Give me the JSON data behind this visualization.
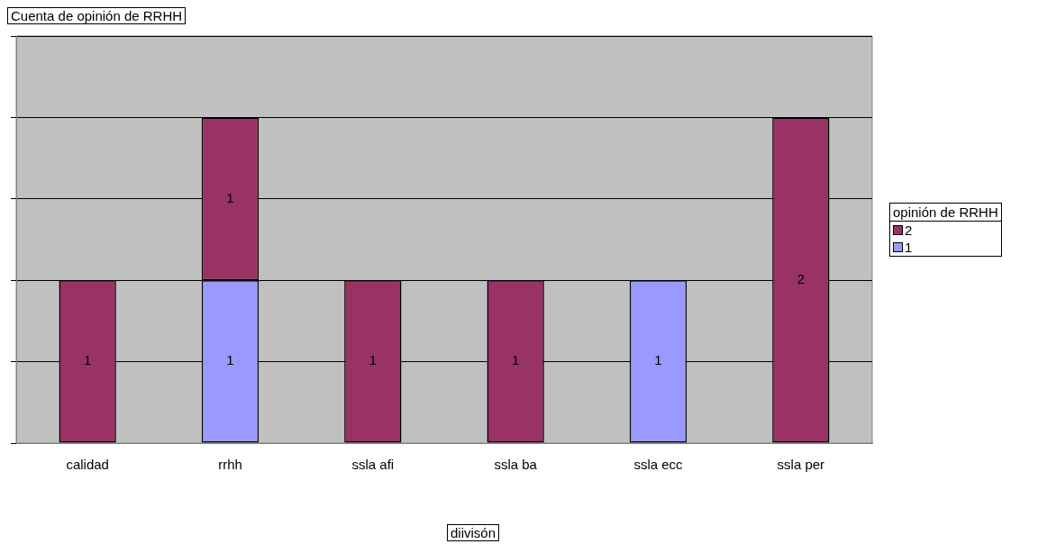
{
  "chart_data": {
    "type": "bar",
    "title": "Cuenta de opinión de RRHH",
    "xlabel": "diivisón",
    "legend_title": "opinión de RRHH",
    "categories": [
      "calidad",
      "rrhh",
      "ssla afi",
      "ssla ba",
      "ssla ecc",
      "ssla per"
    ],
    "series": [
      {
        "name": "1",
        "color": "#9999ff",
        "values": [
          null,
          1,
          null,
          null,
          1,
          null
        ]
      },
      {
        "name": "2",
        "color": "#993366",
        "values": [
          1,
          1,
          1,
          1,
          null,
          2
        ]
      }
    ],
    "stacked": true,
    "ylim": [
      0,
      2.5
    ],
    "yticks": [
      {
        "value": 0,
        "label": null
      },
      {
        "value": 0.5,
        "label": null
      },
      {
        "value": 1,
        "label": null
      },
      {
        "value": 1.5,
        "label": null
      },
      {
        "value": 2,
        "label": null
      },
      {
        "value": 2.5,
        "label": null
      }
    ],
    "tick_labels": "x",
    "grid": "y",
    "legend": "right",
    "data_labels": true
  }
}
